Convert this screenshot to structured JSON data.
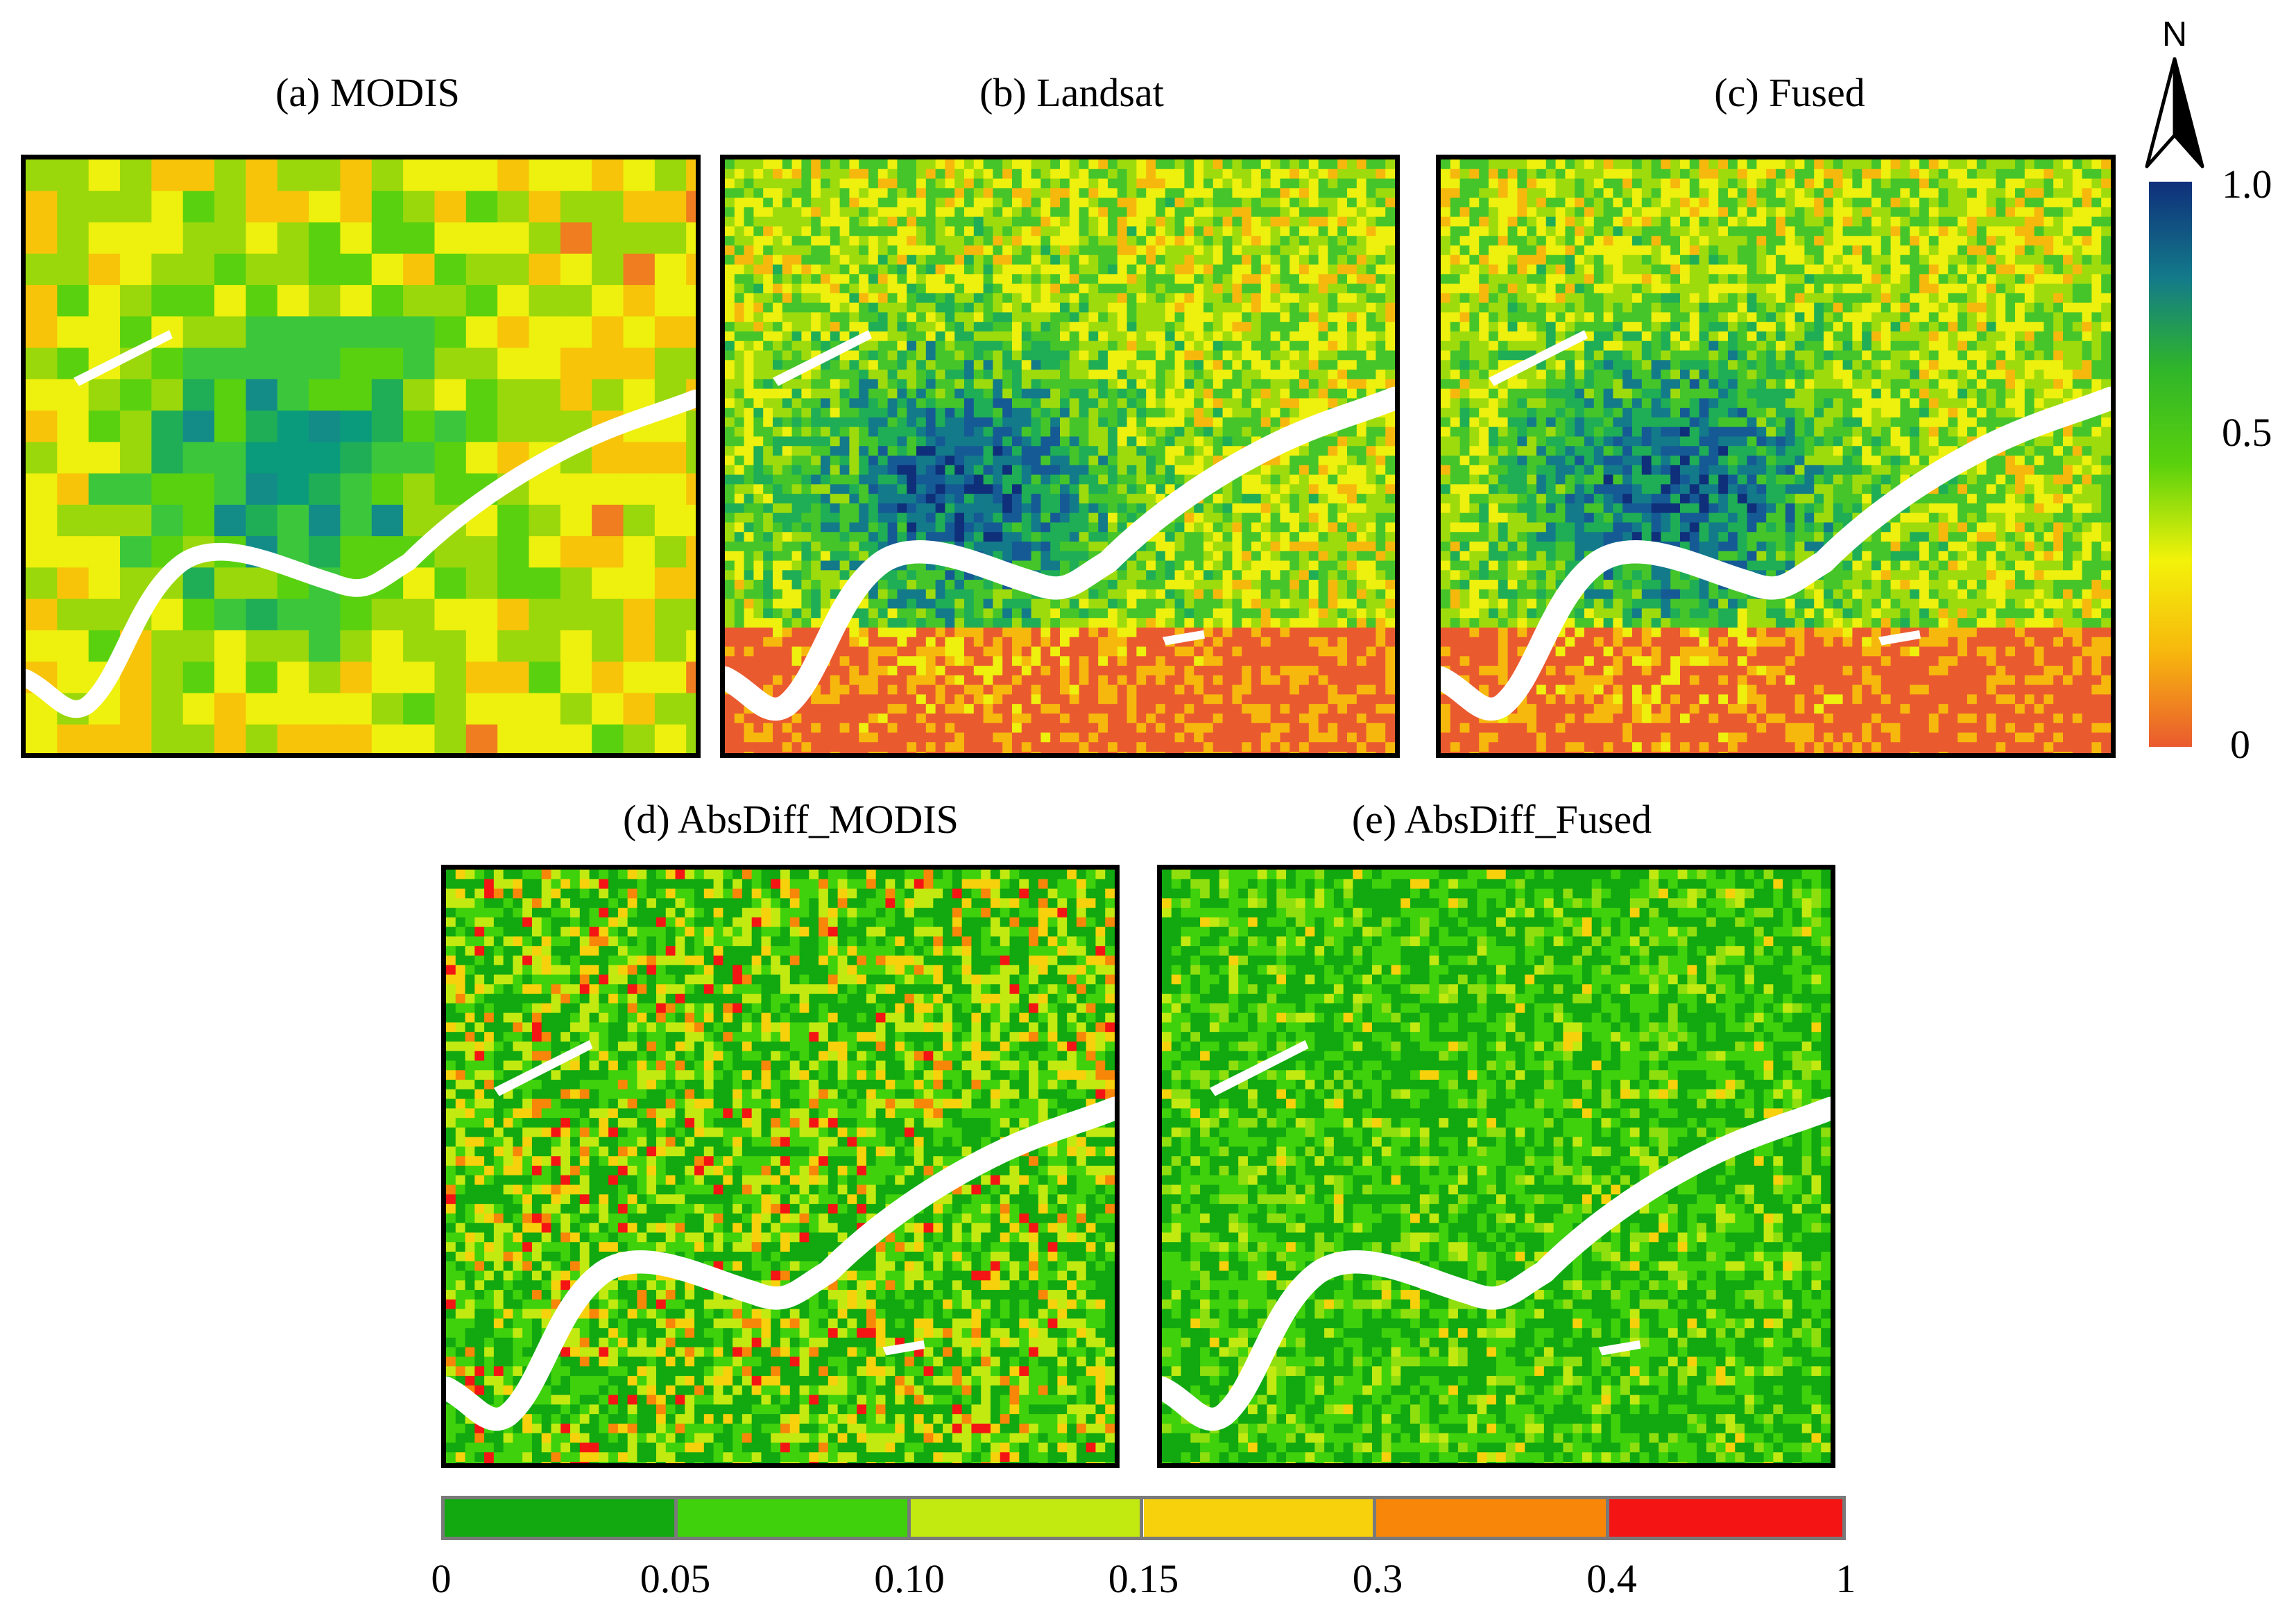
{
  "panels": {
    "a": {
      "title": "(a) MODIS"
    },
    "b": {
      "title": "(b) Landsat"
    },
    "c": {
      "title": "(c) Fused"
    },
    "d": {
      "title": "(d) AbsDiff_MODIS"
    },
    "e": {
      "title": "(e) AbsDiff_Fused"
    }
  },
  "north_arrow": {
    "label": "N"
  },
  "colorbar": {
    "ticks": [
      "1.0",
      "0.5",
      "0"
    ],
    "colors": [
      "#0f2f7a",
      "#137a8a",
      "#2fb52a",
      "#5ad10d",
      "#f3f20a",
      "#f7b80d",
      "#ea5a2f"
    ]
  },
  "legend": {
    "classes": [
      {
        "color": "#11a810"
      },
      {
        "color": "#3fd10b"
      },
      {
        "color": "#c2ea11"
      },
      {
        "color": "#f7d10b"
      },
      {
        "color": "#f78609"
      },
      {
        "color": "#f41414"
      }
    ],
    "ticks": [
      "0",
      "0.05",
      "0.10",
      "0.15",
      "0.3",
      "0.4",
      "1"
    ],
    "outline": "#7a7a7a"
  },
  "map_palettes": {
    "modis": [
      "#0a9a7c",
      "#138c88",
      "#1fae55",
      "#3cc63c",
      "#5ad10f",
      "#9ad80c",
      "#eef00d",
      "#f7c40a",
      "#f07d1f"
    ],
    "landsat": [
      "#0f2f7a",
      "#155a95",
      "#137a8a",
      "#1fae55",
      "#45c52a",
      "#9edb0d",
      "#eef00d",
      "#f7b80d",
      "#ea5a2f"
    ],
    "absdiff_modis": [
      "#11a810",
      "#3fd10b",
      "#c2ea11",
      "#f7d10b",
      "#f78609",
      "#f41414"
    ],
    "absdiff_fused": [
      "#11a810",
      "#3fd10b",
      "#8fdf0e",
      "#c2ea11",
      "#f7d10b"
    ]
  }
}
